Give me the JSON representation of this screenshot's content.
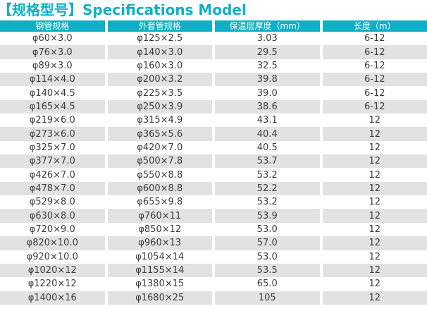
{
  "title": "【规格型号】Specifications Model",
  "colors": {
    "accent": "#0fb0c5",
    "header_bg": "#0fb0c5",
    "row_alt_bg": "#e2e2e2",
    "cell_text": "#3c3c3c",
    "header_text": "#ffffff"
  },
  "table": {
    "headers": [
      "钢管规格",
      "外套管规格",
      "保温层厚度（mm）",
      "长度（m）"
    ],
    "rows": [
      [
        "φ60×3.0",
        "φ125×2.5",
        "3.03",
        "6-12"
      ],
      [
        "φ76×3.0",
        "φ140×3.0",
        "29.5",
        "6-12"
      ],
      [
        "φ89×3.0",
        "φ160×3.0",
        "32.5",
        "6-12"
      ],
      [
        "φ114×4.0",
        "φ200×3.2",
        "39.8",
        "6-12"
      ],
      [
        "φ140×4.5",
        "φ225×3.5",
        "39.0",
        "6-12"
      ],
      [
        "φ165×4.5",
        "φ250×3.9",
        "38.6",
        "6-12"
      ],
      [
        "φ219×6.0",
        "φ315×4.9",
        "43.1",
        "12"
      ],
      [
        "φ273×6.0",
        "φ365×5.6",
        "40.4",
        "12"
      ],
      [
        "φ325×7.0",
        "φ420×7.0",
        "40.5",
        "12"
      ],
      [
        "φ377×7.0",
        "φ500×7.8",
        "53.7",
        "12"
      ],
      [
        "φ426×7.0",
        "φ550×8.8",
        "53.2",
        "12"
      ],
      [
        "φ478×7.0",
        "φ600×8.8",
        "52.2",
        "12"
      ],
      [
        "φ529×8.0",
        "φ655×9.8",
        "53.2",
        "12"
      ],
      [
        "φ630×8.0",
        "φ760×11",
        "53.9",
        "12"
      ],
      [
        "φ720×9.0",
        "φ850×12",
        "53.0",
        "12"
      ],
      [
        "φ820×10.0",
        "φ960×13",
        "57.0",
        "12"
      ],
      [
        "φ920×10.0",
        "φ1054×14",
        "53.0",
        "12"
      ],
      [
        "φ1020×12",
        "φ1155×14",
        "53.5",
        "12"
      ],
      [
        "φ1220×12",
        "φ1380×15",
        "65.0",
        "12"
      ],
      [
        "φ1400×16",
        "φ1680×25",
        "105",
        "12"
      ]
    ]
  }
}
